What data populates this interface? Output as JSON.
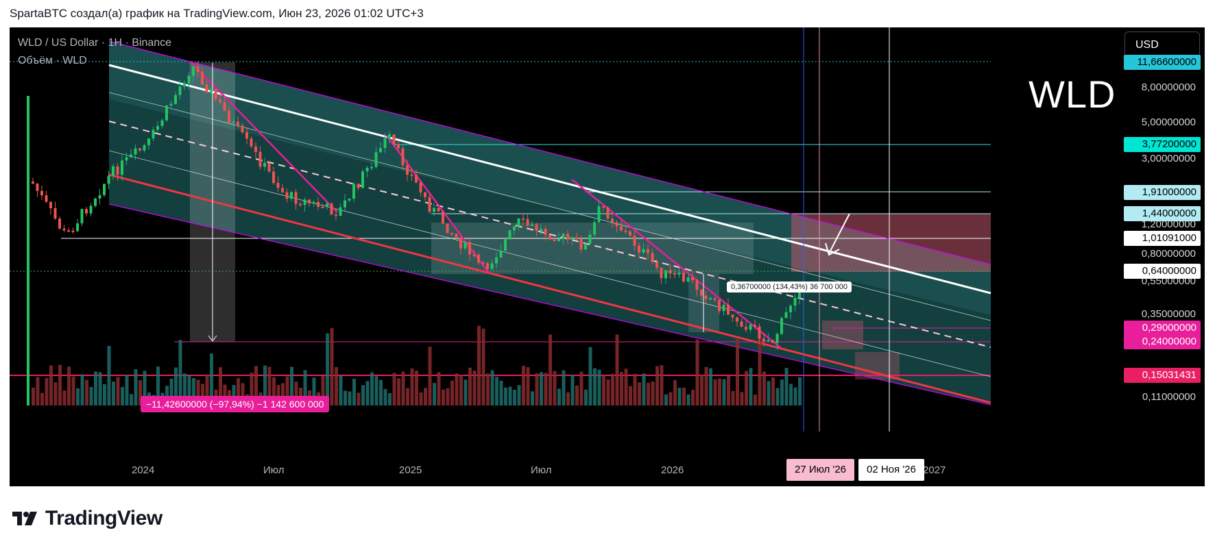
{
  "header": {
    "text": "SpartaBTC создал(а) график на TradingView.com, Июн 23, 2026 01:02 UTC+3"
  },
  "chart": {
    "symbol_line": "WLD / US Dollar · 1Н · Binance",
    "volume_line": "Объём · WLD",
    "currency_button": "USD",
    "ticker_overlay": "WLD",
    "measure_down": "−11,42600000 (−97,94%) −1 142 600 000",
    "measure_up": "0,36700000 (134,43%) 36 700 000"
  },
  "price_axis": {
    "labels": [
      {
        "text": "11,66600000",
        "bg": "#26c6da",
        "fg": "#000000"
      },
      {
        "text": "3,77200000",
        "bg": "#00e5d4",
        "fg": "#000000"
      },
      {
        "text": "1,91000000",
        "bg": "#b2ebf2",
        "fg": "#000000"
      },
      {
        "text": "1,44000000",
        "bg": "#b2ebf2",
        "fg": "#000000"
      },
      {
        "text": "1,01091000",
        "bg": "#ffffff",
        "fg": "#000000"
      },
      {
        "text": "0,64000000",
        "bg": "#ffffff",
        "fg": "#000000"
      },
      {
        "text": "0,29000000",
        "bg": "#e91e9a",
        "fg": "#ffffff"
      },
      {
        "text": "0,24000000",
        "bg": "#e91e9a",
        "fg": "#ffffff"
      },
      {
        "text": "0,15031431",
        "bg": "#e91e63",
        "fg": "#ffffff"
      }
    ],
    "ticks": [
      "8,00000000",
      "5,00000000",
      "3,00000000",
      "1,20000000",
      "0,80000000",
      "0,55000000",
      "0,35000000",
      "0,11000000"
    ]
  },
  "time_axis": {
    "labels": [
      "2024",
      "Июл",
      "2025",
      "Июл",
      "2026",
      "2027"
    ],
    "badges": [
      {
        "text": "27 Июл '26",
        "bg": "#f8bbd0",
        "fg": "#000000"
      },
      {
        "text": "02 Ноя '26",
        "bg": "#ffffff",
        "fg": "#000000"
      }
    ]
  },
  "branding": {
    "name": "TradingView"
  },
  "colors": {
    "channel_fill": "#1a5454",
    "channel_border": "#d500f9",
    "support_line": "#f23645",
    "resistance_line": "#ffffff",
    "bull_candle": "#26a69a",
    "bear_candle": "#ef5350",
    "target_zone": "#a84a5a"
  }
}
